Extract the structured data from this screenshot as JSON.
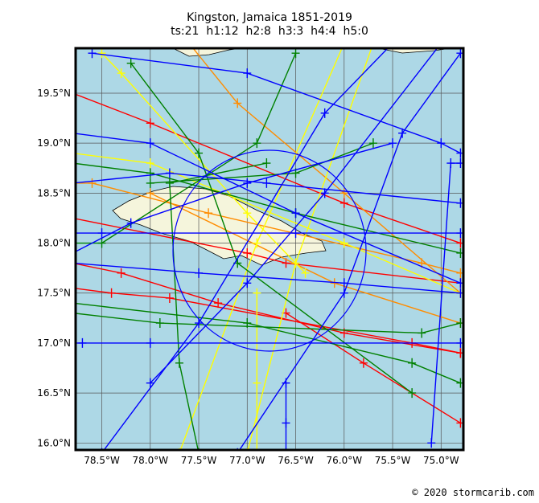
{
  "chart_data": {
    "type": "map",
    "title": "Kingston, Jamaica 1851-2019",
    "subtitle": "ts:21  h1:12  h2:8  h3:3  h4:4  h5:0",
    "credit": "© 2020 stormcarib.com",
    "xlim": [
      -78.77,
      -74.77
    ],
    "ylim": [
      15.93,
      19.95
    ],
    "xticks": [
      {
        "value": -78.5,
        "label": "78.5°W"
      },
      {
        "value": -78.0,
        "label": "78.0°W"
      },
      {
        "value": -77.5,
        "label": "77.5°W"
      },
      {
        "value": -77.0,
        "label": "77.0°W"
      },
      {
        "value": -76.5,
        "label": "76.5°W"
      },
      {
        "value": -76.0,
        "label": "76.0°W"
      },
      {
        "value": -75.5,
        "label": "75.5°W"
      },
      {
        "value": -75.0,
        "label": "75.0°W"
      }
    ],
    "yticks": [
      {
        "value": 16.0,
        "label": "16.0°N"
      },
      {
        "value": 16.5,
        "label": "16.5°N"
      },
      {
        "value": 17.0,
        "label": "17.0°N"
      },
      {
        "value": 17.5,
        "label": "17.5°N"
      },
      {
        "value": 18.0,
        "label": "18.0°N"
      },
      {
        "value": 18.5,
        "label": "18.5°N"
      },
      {
        "value": 19.0,
        "label": "19.0°N"
      },
      {
        "value": 19.5,
        "label": "19.5°N"
      }
    ],
    "grid": true,
    "series": [
      {
        "color": "#ff0000",
        "x": [
          -78.8,
          -78.0,
          -76.0,
          -74.8
        ],
        "y": [
          19.5,
          19.2,
          18.4,
          18.0
        ]
      },
      {
        "color": "#ff0000",
        "x": [
          -78.8,
          -77.0,
          -76.6,
          -74.8
        ],
        "y": [
          18.25,
          17.9,
          17.8,
          17.6
        ]
      },
      {
        "color": "#ff0000",
        "x": [
          -78.8,
          -78.4,
          -77.8,
          -75.3,
          -74.8
        ],
        "y": [
          17.55,
          17.5,
          17.45,
          17.0,
          16.9
        ]
      },
      {
        "color": "#ff0000",
        "x": [
          -78.8,
          -78.3,
          -77.3,
          -76.0,
          -74.8
        ],
        "y": [
          17.8,
          17.7,
          17.4,
          17.1,
          16.9
        ]
      },
      {
        "color": "#ff0000",
        "x": [
          -76.6,
          -75.8,
          -74.8
        ],
        "y": [
          17.3,
          16.8,
          16.2
        ]
      },
      {
        "color": "#ff8c00",
        "x": [
          -77.6,
          -77.1,
          -76.0,
          -74.8
        ],
        "y": [
          20.0,
          19.4,
          18.5,
          17.5
        ]
      },
      {
        "color": "#ff8c00",
        "x": [
          -78.8,
          -78.6,
          -77.4,
          -75.2,
          -74.8
        ],
        "y": [
          18.6,
          18.6,
          18.3,
          17.8,
          17.7
        ]
      },
      {
        "color": "#ff8c00",
        "x": [
          -78.0,
          -76.1,
          -74.8
        ],
        "y": [
          18.5,
          17.6,
          17.2
        ]
      },
      {
        "color": "#ffff00",
        "x": [
          -77.7,
          -76.9,
          -76.0
        ],
        "y": [
          15.9,
          18.0,
          20.0
        ]
      },
      {
        "color": "#ffff00",
        "x": [
          -78.8,
          -78.0,
          -76.0,
          -74.8
        ],
        "y": [
          18.9,
          18.8,
          18.0,
          17.5
        ]
      },
      {
        "color": "#ffff00",
        "x": [
          -77.0,
          -76.5,
          -75.7
        ],
        "y": [
          15.9,
          17.8,
          20.0
        ]
      },
      {
        "color": "#ffff00",
        "x": [
          -78.5,
          -78.3,
          -77.0,
          -76.4
        ],
        "y": [
          19.9,
          19.7,
          18.3,
          17.7
        ]
      },
      {
        "color": "#ffff00",
        "x": [
          -76.9,
          -76.9,
          -76.9
        ],
        "y": [
          15.9,
          16.6,
          17.5
        ]
      },
      {
        "color": "#008000",
        "x": [
          -78.8,
          -78.0,
          -76.5,
          -74.8
        ],
        "y": [
          18.8,
          18.7,
          18.3,
          17.9
        ]
      },
      {
        "color": "#008000",
        "x": [
          -78.8,
          -78.5,
          -76.9,
          -76.5
        ],
        "y": [
          18.0,
          18.0,
          19.0,
          19.9
        ]
      },
      {
        "color": "#008000",
        "x": [
          -77.5,
          -77.7,
          -77.8,
          -76.8
        ],
        "y": [
          15.9,
          16.8,
          18.6,
          18.8
        ]
      },
      {
        "color": "#008000",
        "x": [
          -78.8,
          -77.0,
          -75.3,
          -74.8
        ],
        "y": [
          17.4,
          17.2,
          16.8,
          16.6
        ]
      },
      {
        "color": "#008000",
        "x": [
          -78.2,
          -77.5,
          -77.1,
          -75.3
        ],
        "y": [
          19.8,
          18.9,
          17.8,
          16.5
        ]
      },
      {
        "color": "#008000",
        "x": [
          -78.8,
          -77.9,
          -75.2,
          -74.8
        ],
        "y": [
          17.3,
          17.2,
          17.1,
          17.2
        ]
      },
      {
        "color": "#008000",
        "x": [
          -78.0,
          -76.5,
          -75.7
        ],
        "y": [
          18.6,
          18.7,
          19.0
        ]
      },
      {
        "color": "#0000ff",
        "x": [
          -78.8,
          -78.5,
          -76.5,
          -74.8
        ],
        "y": [
          18.1,
          18.1,
          18.1,
          18.1
        ]
      },
      {
        "color": "#0000ff",
        "x": [
          -78.8,
          -78.7,
          -78.0,
          -74.8
        ],
        "y": [
          17.0,
          17.0,
          17.0,
          17.0
        ]
      },
      {
        "color": "#0000ff",
        "x": [
          -78.8,
          -77.5,
          -76.0,
          -74.8
        ],
        "y": [
          17.8,
          17.7,
          17.6,
          17.5
        ]
      },
      {
        "color": "#0000ff",
        "x": [
          -78.5,
          -77.5,
          -76.2,
          -75.5
        ],
        "y": [
          15.9,
          17.2,
          19.3,
          20.0
        ]
      },
      {
        "color": "#0000ff",
        "x": [
          -77.1,
          -76.0,
          -75.4,
          -74.8
        ],
        "y": [
          15.9,
          17.5,
          19.1,
          19.9
        ]
      },
      {
        "color": "#0000ff",
        "x": [
          -78.8,
          -78.0,
          -76.5,
          -74.8
        ],
        "y": [
          19.1,
          19.0,
          18.3,
          17.6
        ]
      },
      {
        "color": "#0000ff",
        "x": [
          -78.6,
          -77.0,
          -75.0,
          -74.8
        ],
        "y": [
          19.9,
          19.7,
          19.0,
          18.9
        ]
      },
      {
        "color": "#0000ff",
        "x": [
          -78.0,
          -77.0,
          -76.2,
          -75.0
        ],
        "y": [
          16.6,
          17.6,
          18.5,
          20.0
        ]
      },
      {
        "color": "#0000ff",
        "x": [
          -76.6,
          -76.6,
          -76.6
        ],
        "y": [
          15.9,
          16.2,
          16.6
        ]
      },
      {
        "color": "#0000ff",
        "x": [
          -78.8,
          -78.2,
          -77.0,
          -75.5
        ],
        "y": [
          17.9,
          18.2,
          18.6,
          19.0
        ]
      },
      {
        "color": "#0000ff",
        "x": [
          -78.8,
          -77.8,
          -76.8,
          -74.8
        ],
        "y": [
          18.6,
          18.7,
          18.6,
          18.4
        ]
      },
      {
        "color": "#0000ff",
        "x": [
          -75.1,
          -74.9,
          -74.8
        ],
        "y": [
          16.0,
          18.8,
          18.8
        ]
      }
    ]
  }
}
